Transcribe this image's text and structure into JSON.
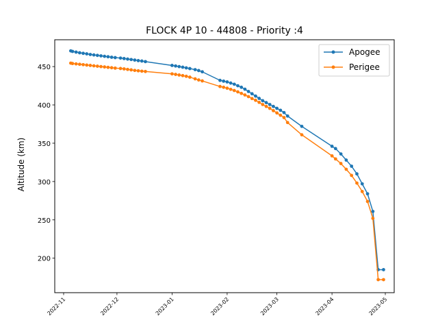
{
  "chart_data": {
    "type": "line",
    "title": "FLOCK 4P 10 - 44808 - Priority :4",
    "xlabel": "",
    "ylabel": "Altitude (km)",
    "x_type": "date",
    "xlim": [
      "2022-10-27",
      "2023-05-06"
    ],
    "ylim": [
      155,
      485
    ],
    "x_ticks": [
      "2022-11-01",
      "2022-12-01",
      "2023-01-01",
      "2023-02-01",
      "2023-03-01",
      "2023-04-01",
      "2023-05-01"
    ],
    "x_tick_labels": [
      "2022-11",
      "2022-12",
      "2023-01",
      "2023-02",
      "2023-03",
      "2023-04",
      "2023-05"
    ],
    "y_ticks": [
      200,
      250,
      300,
      350,
      400,
      450
    ],
    "y_tick_labels": [
      "200",
      "250",
      "300",
      "350",
      "400",
      "450"
    ],
    "grid": false,
    "legend_position": "upper-right",
    "x": [
      "2022-11-05",
      "2022-11-06",
      "2022-11-08",
      "2022-11-10",
      "2022-11-12",
      "2022-11-14",
      "2022-11-16",
      "2022-11-18",
      "2022-11-20",
      "2022-11-22",
      "2022-11-24",
      "2022-11-26",
      "2022-11-28",
      "2022-11-30",
      "2022-12-03",
      "2022-12-05",
      "2022-12-07",
      "2022-12-09",
      "2022-12-11",
      "2022-12-13",
      "2022-12-15",
      "2022-12-17",
      "2023-01-01",
      "2023-01-03",
      "2023-01-05",
      "2023-01-07",
      "2023-01-09",
      "2023-01-11",
      "2023-01-14",
      "2023-01-16",
      "2023-01-18",
      "2023-01-28",
      "2023-01-30",
      "2023-02-01",
      "2023-02-03",
      "2023-02-05",
      "2023-02-07",
      "2023-02-09",
      "2023-02-11",
      "2023-02-13",
      "2023-02-15",
      "2023-02-17",
      "2023-02-19",
      "2023-02-21",
      "2023-02-23",
      "2023-02-25",
      "2023-02-27",
      "2023-03-01",
      "2023-03-03",
      "2023-03-05",
      "2023-03-07",
      "2023-03-15",
      "2023-04-01",
      "2023-04-03",
      "2023-04-06",
      "2023-04-09",
      "2023-04-12",
      "2023-04-15",
      "2023-04-18",
      "2023-04-21",
      "2023-04-24",
      "2023-04-27",
      "2023-04-30"
    ],
    "series": [
      {
        "name": "Apogee",
        "color": "#1f77b4",
        "values": [
          470.5,
          469.8,
          468.9,
          468.0,
          467.3,
          466.6,
          465.8,
          465.2,
          464.6,
          464.0,
          463.4,
          462.8,
          462.2,
          461.7,
          461.1,
          460.5,
          459.8,
          459.2,
          458.5,
          457.8,
          457.2,
          456.5,
          451.5,
          450.8,
          450.0,
          449.2,
          448.3,
          447.4,
          446.0,
          444.8,
          443.2,
          432.0,
          431.0,
          430.0,
          428.5,
          427.0,
          425.0,
          423.0,
          420.5,
          417.5,
          414.5,
          411.5,
          408.5,
          405.5,
          403.0,
          400.5,
          398.0,
          395.5,
          393.0,
          390.0,
          385.5,
          372.0,
          346.0,
          343.0,
          336.0,
          328.0,
          320.0,
          310.0,
          297.0,
          284.0,
          261.0,
          185.0,
          185.0
        ]
      },
      {
        "name": "Perigee",
        "color": "#ff7f0e",
        "values": [
          454.5,
          454.0,
          453.5,
          453.0,
          452.5,
          452.0,
          451.5,
          451.0,
          450.5,
          450.0,
          449.5,
          449.0,
          448.5,
          448.0,
          447.5,
          447.0,
          446.3,
          445.7,
          445.0,
          444.5,
          444.0,
          443.6,
          440.5,
          439.8,
          439.0,
          438.2,
          437.3,
          436.2,
          434.0,
          432.5,
          431.3,
          424.0,
          423.0,
          421.8,
          420.3,
          418.8,
          417.0,
          415.0,
          413.0,
          410.8,
          408.3,
          406.0,
          403.3,
          400.5,
          398.0,
          395.5,
          392.5,
          389.5,
          386.5,
          383.5,
          377.0,
          361.0,
          333.5,
          329.5,
          323.5,
          316.0,
          308.0,
          298.0,
          287.0,
          274.0,
          252.0,
          172.0,
          172.0
        ]
      }
    ]
  }
}
